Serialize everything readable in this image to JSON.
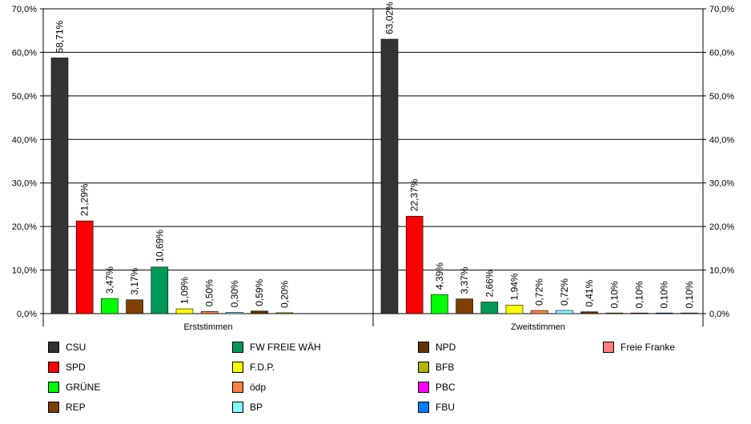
{
  "chart_data": {
    "type": "bar",
    "y_tick_labels": [
      "0,0%",
      "10,0%",
      "20,0%",
      "30,0%",
      "40,0%",
      "50,0%",
      "60,0%",
      "70,0%"
    ],
    "ylim": [
      0,
      70
    ],
    "grid": true,
    "legend_position": "bottom",
    "groups": [
      {
        "label": "Erststimmen",
        "bars": [
          {
            "series": "CSU",
            "value": 58.71,
            "label": "58,71%"
          },
          {
            "series": "SPD",
            "value": 21.29,
            "label": "21,29%"
          },
          {
            "series": "GRÜNE",
            "value": 3.47,
            "label": "3,47%"
          },
          {
            "series": "REP",
            "value": 3.17,
            "label": "3,17%"
          },
          {
            "series": "FW FREIE WÄH",
            "value": 10.69,
            "label": "10,69%"
          },
          {
            "series": "F.D.P.",
            "value": 1.09,
            "label": "1,09%"
          },
          {
            "series": "ödp",
            "value": 0.5,
            "label": "0,50%"
          },
          {
            "series": "BP",
            "value": 0.3,
            "label": "0,30%"
          },
          {
            "series": "NPD",
            "value": 0.59,
            "label": "0,59%"
          },
          {
            "series": "BFB",
            "value": 0.2,
            "label": "0,20%"
          }
        ]
      },
      {
        "label": "Zweitstimmen",
        "bars": [
          {
            "series": "CSU",
            "value": 63.02,
            "label": "63,02%"
          },
          {
            "series": "SPD",
            "value": 22.37,
            "label": "22,37%"
          },
          {
            "series": "GRÜNE",
            "value": 4.39,
            "label": "4,39%"
          },
          {
            "series": "REP",
            "value": 3.37,
            "label": "3,37%"
          },
          {
            "series": "FW FREIE WÄH",
            "value": 2.66,
            "label": "2,66%"
          },
          {
            "series": "F.D.P.",
            "value": 1.94,
            "label": "1,94%"
          },
          {
            "series": "ödp",
            "value": 0.72,
            "label": "0,72%"
          },
          {
            "series": "BP",
            "value": 0.72,
            "label": "0,72%"
          },
          {
            "series": "NPD",
            "value": 0.41,
            "label": "0,41%"
          },
          {
            "series": "BFB",
            "value": 0.1,
            "label": "0,10%"
          },
          {
            "series": "PBC",
            "value": 0.1,
            "label": "0,10%"
          },
          {
            "series": "FBU",
            "value": 0.1,
            "label": "0,10%"
          },
          {
            "series": "Freie Franke",
            "value": 0.1,
            "label": "0,10%"
          }
        ]
      }
    ],
    "series": [
      {
        "name": "CSU",
        "color": "#333333"
      },
      {
        "name": "SPD",
        "color": "#ff0000"
      },
      {
        "name": "GRÜNE",
        "color": "#00ff00"
      },
      {
        "name": "REP",
        "color": "#7f3f00"
      },
      {
        "name": "FW FREIE WÄH",
        "color": "#009955"
      },
      {
        "name": "F.D.P.",
        "color": "#ffff00"
      },
      {
        "name": "ödp",
        "color": "#ff8040"
      },
      {
        "name": "BP",
        "color": "#80ffff"
      },
      {
        "name": "NPD",
        "color": "#663300"
      },
      {
        "name": "BFB",
        "color": "#b3b300"
      },
      {
        "name": "PBC",
        "color": "#ff00ff"
      },
      {
        "name": "FBU",
        "color": "#0080ff"
      },
      {
        "name": "Freie Franke",
        "color": "#ff8080"
      }
    ]
  }
}
